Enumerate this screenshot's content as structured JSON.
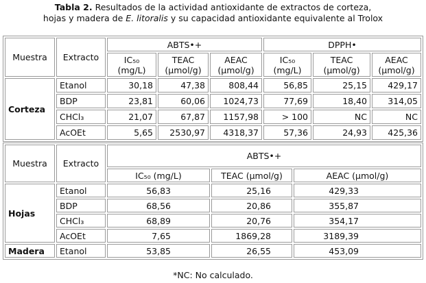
{
  "title": {
    "label": "Tabla 2.",
    "text_1": " Resultados de la actividad antioxidante de extractos de corteza,",
    "text_2": "hojas y madera de ",
    "species": "E. litoralis",
    "text_3": " y su capacidad antioxidante equivalente al Trolox"
  },
  "table_1": {
    "headers": {
      "sample": "Muestra",
      "extract": "Extracto",
      "group_1": "ABTS•+",
      "group_2": "DPPH•",
      "columns": [
        "IC₅₀ (mg/L)",
        "TEAC (µmol/g)",
        "AEAC (µmol/g)",
        "IC₅₀ (mg/L)",
        "TEAC (µmol/g)",
        "AEAC (µmol/g)"
      ]
    },
    "groups": [
      {
        "sample": "Corteza",
        "rows": [
          [
            "Etanol",
            "30,18",
            "47,38",
            "808,44",
            "56,85",
            "25,15",
            "429,17"
          ],
          [
            "BDP",
            "23,81",
            "60,06",
            "1024,73",
            "77,69",
            "18,40",
            "314,05"
          ],
          [
            "CHCl₃",
            "21,07",
            "67,87",
            "1157,98",
            "> 100",
            "NC",
            "NC"
          ],
          [
            "AcOEt",
            "5,65",
            "2530,97",
            "4318,37",
            "57,36",
            "24,93",
            "425,36"
          ]
        ]
      }
    ]
  },
  "table_2": {
    "headers": {
      "sample": "Muestra",
      "extract": "Extracto",
      "group_1": "ABTS•+",
      "columns": [
        "IC₅₀ (mg/L)",
        "TEAC (µmol/g)",
        "AEAC (µmol/g)"
      ]
    },
    "groups": [
      {
        "sample": "Hojas",
        "rows": [
          [
            "Etanol",
            "56,83",
            "25,16",
            "429,33"
          ],
          [
            "BDP",
            "68,56",
            "20,86",
            "355,87"
          ],
          [
            "CHCl₃",
            "68,89",
            "20,76",
            "354,17"
          ],
          [
            "AcOEt",
            "7,65",
            "1869,28",
            "3189,39"
          ]
        ]
      },
      {
        "sample": "Madera",
        "rows": [
          [
            "Etanol",
            "53,85",
            "26,55",
            "453,09"
          ]
        ]
      }
    ]
  },
  "footnote": "*NC: No calculado."
}
